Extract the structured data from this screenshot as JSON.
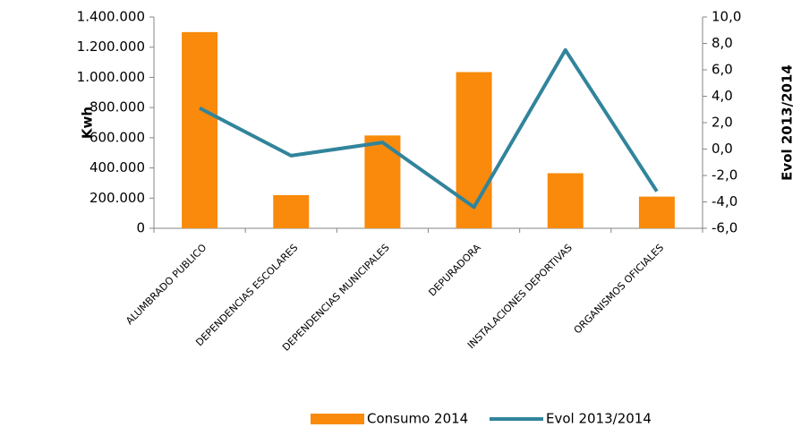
{
  "chart_data": {
    "type": "bar_line",
    "categories": [
      "ALUMBRADO PUBLICO",
      "DEPENDENCIAS ESCOLARES",
      "DEPENDENCIAS MUNICIPALES",
      "DEPURADORA",
      "INSTALACIONES DEPORTIVAS",
      "ORGANISMOS OFICIALES"
    ],
    "series": [
      {
        "name": "Consumo 2014",
        "type": "bar",
        "color": "#f98a0b",
        "values": [
          1300000,
          220000,
          615000,
          1035000,
          365000,
          210000
        ]
      },
      {
        "name": "Evol 2013/2014",
        "type": "line",
        "axis": "y2",
        "color": "#31849b",
        "values": [
          3.1,
          -0.5,
          0.5,
          -4.4,
          7.5,
          -3.2
        ]
      }
    ],
    "ylabel": "Kwh",
    "y2label": "Evol 2013/2014",
    "ylim": [
      0,
      1400000
    ],
    "yticks": [
      0,
      {
        "value": 200000,
        "label": "200.000"
      },
      {
        "value": 400000,
        "label": "400.000"
      },
      {
        "value": 600000,
        "label": "600.000"
      },
      {
        "value": 800000,
        "label": "800.000"
      },
      {
        "value": 1000000,
        "label": "1.000.000"
      },
      {
        "value": 1200000,
        "label": "1.200.000"
      },
      {
        "value": 1400000,
        "label": "1.400.000"
      }
    ],
    "y2lim": [
      -6,
      10
    ],
    "y2ticks": [
      {
        "value": -6,
        "label": "-6,0"
      },
      {
        "value": -4,
        "label": "-4,0"
      },
      {
        "value": -2,
        "label": "-2,0"
      },
      {
        "value": 0,
        "label": "0,0"
      },
      {
        "value": 2,
        "label": "2,0"
      },
      {
        "value": 4,
        "label": "4,0"
      },
      {
        "value": 6,
        "label": "6,0"
      },
      {
        "value": 8,
        "label": "8,0"
      },
      {
        "value": 10,
        "label": "10,0"
      }
    ],
    "grid": false,
    "legend": "bottom"
  }
}
